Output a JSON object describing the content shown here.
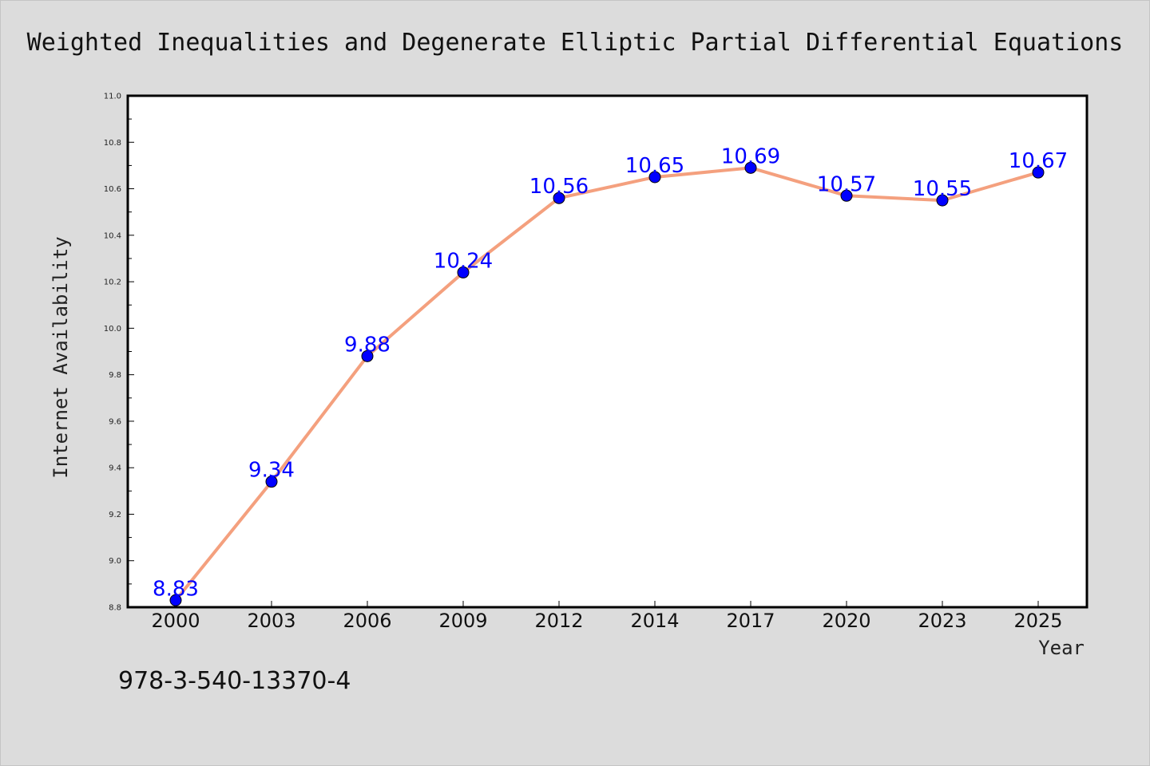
{
  "chart_data": {
    "type": "line",
    "title": "Weighted Inequalities and Degenerate Elliptic Partial Differential Equations",
    "xlabel": "Year",
    "ylabel": "Internet Availability",
    "categories": [
      "2000",
      "2003",
      "2006",
      "2009",
      "2012",
      "2014",
      "2017",
      "2020",
      "2023",
      "2025"
    ],
    "values": [
      8.83,
      9.34,
      9.88,
      10.24,
      10.56,
      10.65,
      10.69,
      10.57,
      10.55,
      10.67
    ],
    "data_labels": [
      "8.83",
      "9.34",
      "9.88",
      "10.24",
      "10.56",
      "10.65",
      "10.69",
      "10.57",
      "10.55",
      "10.67"
    ],
    "ylim": [
      8.8,
      11.0
    ],
    "yticks": [
      "8.8",
      "9.0",
      "9.2",
      "9.4",
      "9.6",
      "9.8",
      "10.0",
      "10.2",
      "10.4",
      "10.6",
      "10.8",
      "11.0"
    ],
    "grid": false,
    "line_color": "#f4a07e",
    "marker_color": "#0000ff",
    "label_color": "#0000ff"
  },
  "footer": {
    "isbn": "978-3-540-13370-4"
  }
}
